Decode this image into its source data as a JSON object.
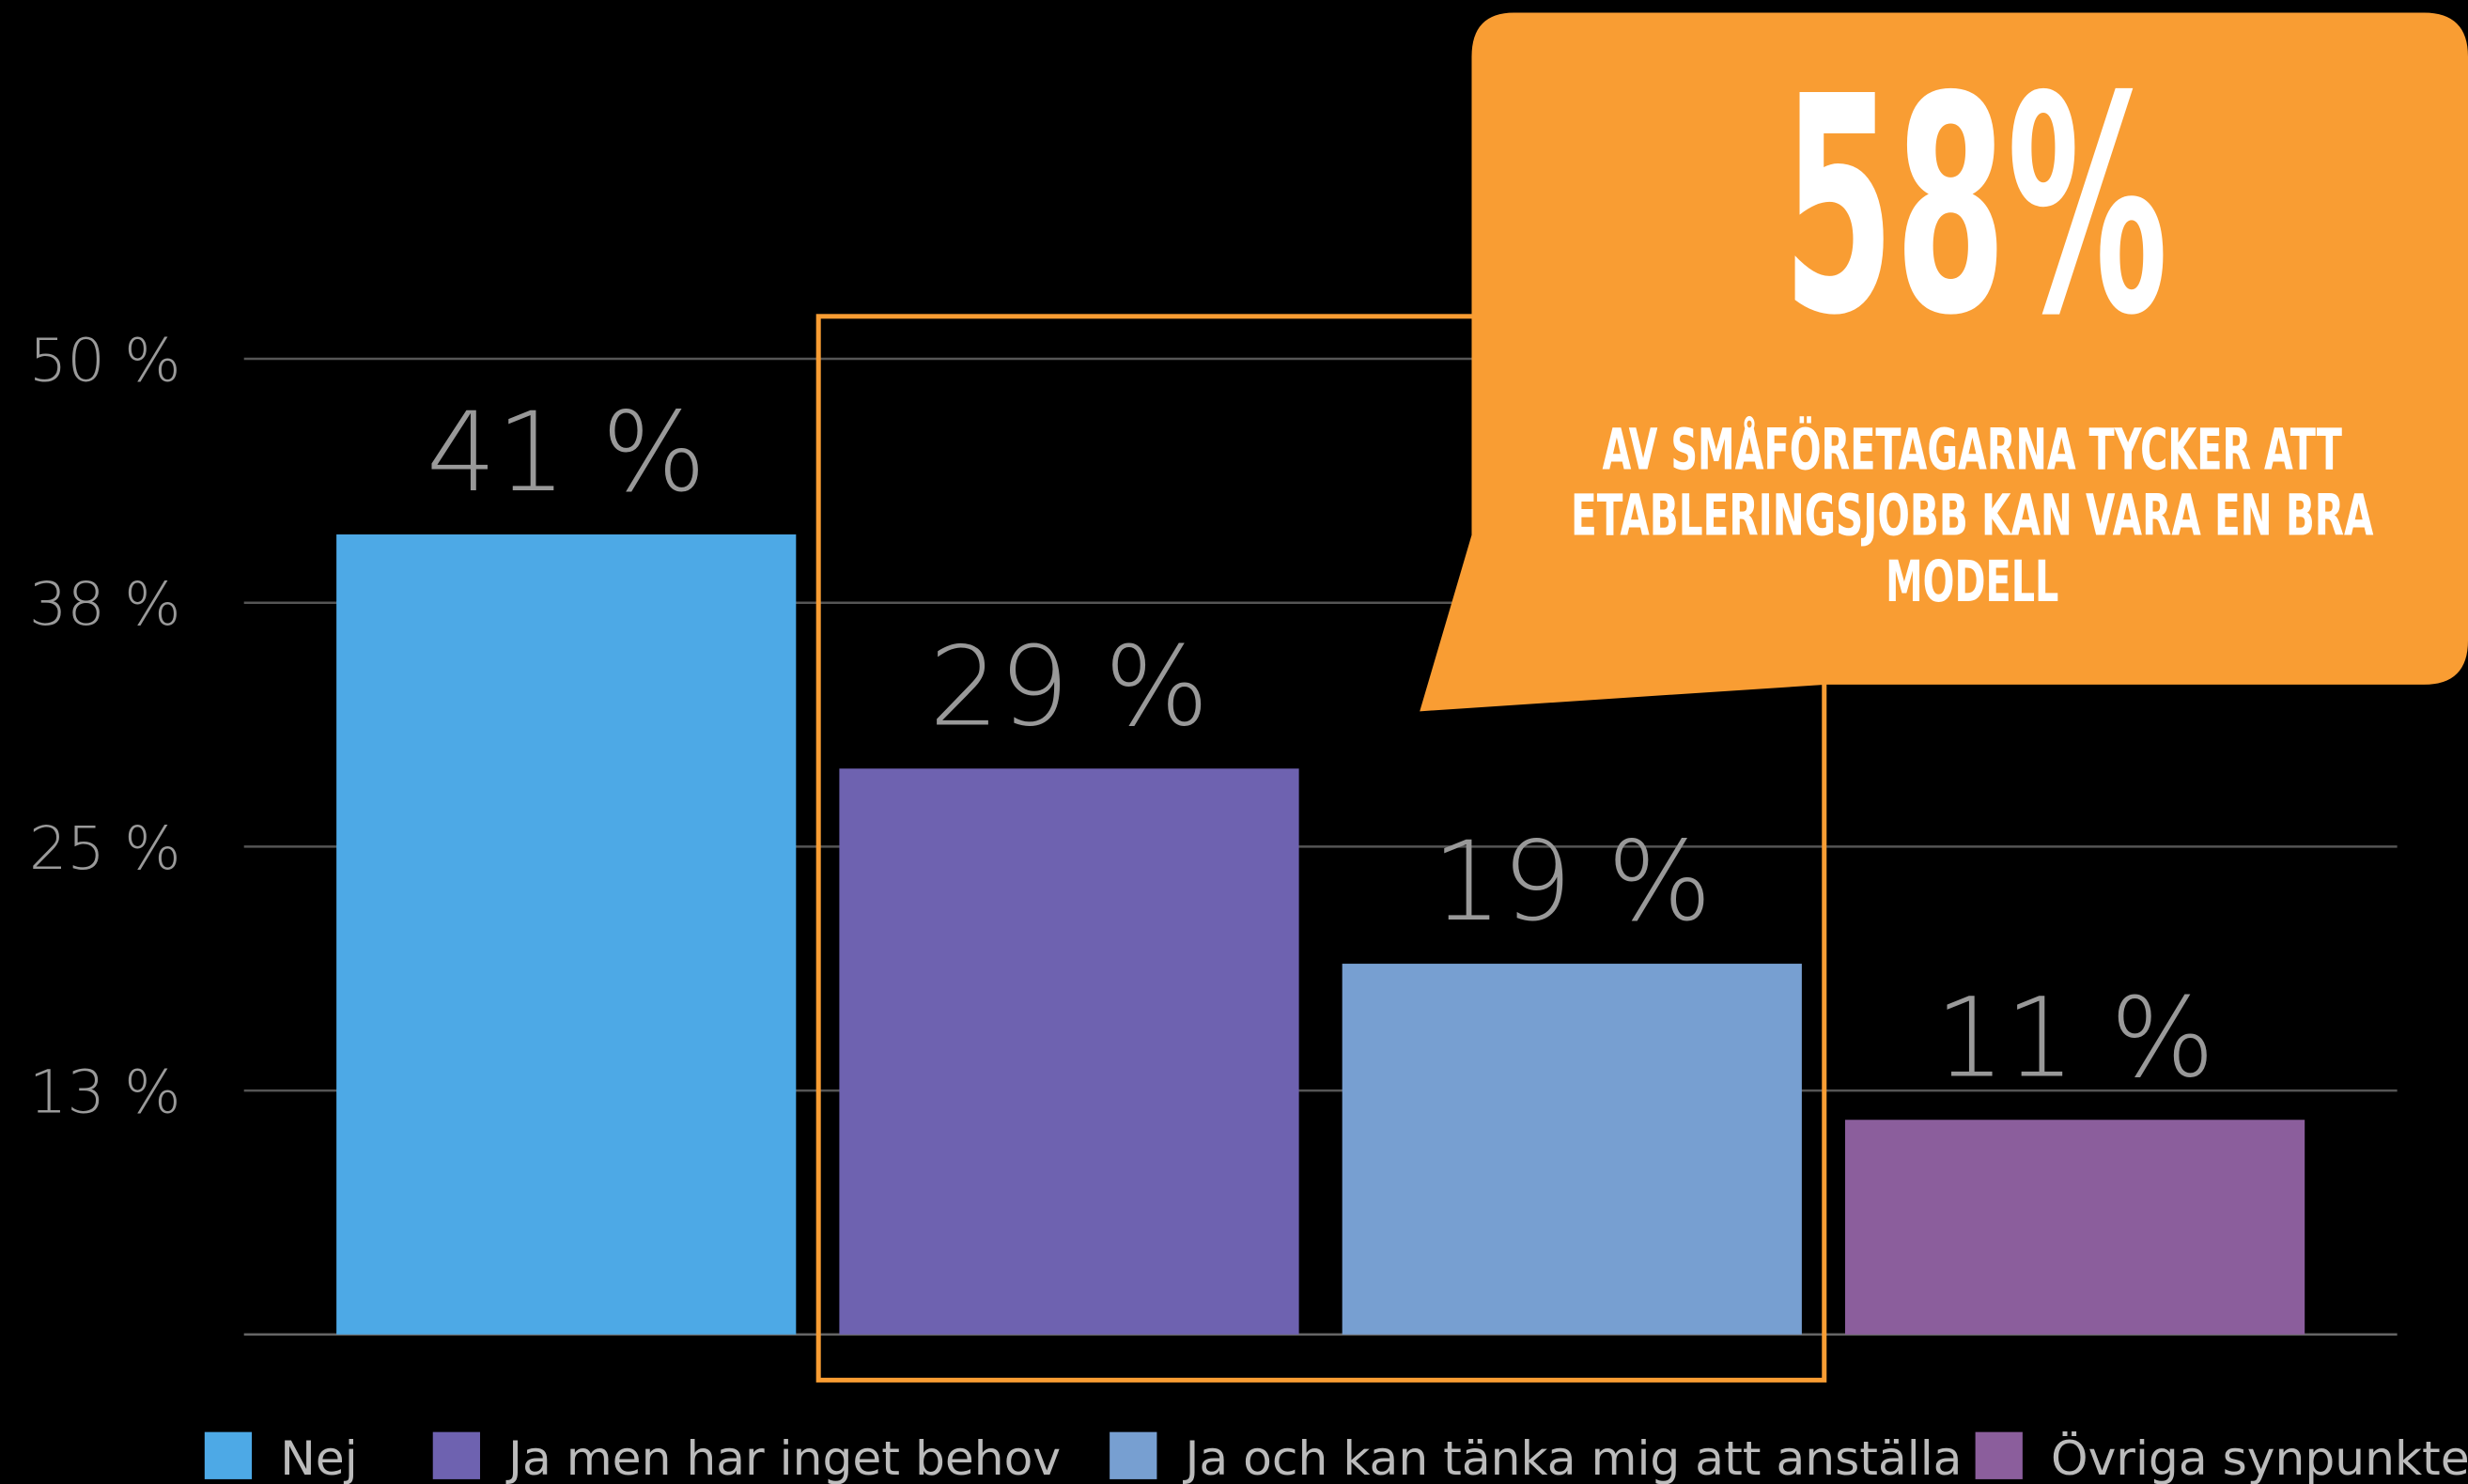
{
  "chart_data": {
    "type": "bar",
    "categories": [
      "Nej",
      "Ja men har inget behov",
      "Ja och kan tänka mig att anställa",
      "Övriga synpunkter"
    ],
    "values": [
      41,
      29,
      19,
      11
    ],
    "value_labels": [
      "41 %",
      "29 %",
      "19 %",
      "11 %"
    ],
    "colors": [
      "#4da9e6",
      "#6e62b0",
      "#779fd1",
      "#8b5e9c"
    ],
    "ylim": [
      0,
      50
    ],
    "yticks": [
      {
        "value": 12.5,
        "label": "13 %"
      },
      {
        "value": 25,
        "label": "25 %"
      },
      {
        "value": 37.5,
        "label": "38 %"
      },
      {
        "value": 50,
        "label": "50 %"
      }
    ],
    "grid": true,
    "annotation": {
      "headline": "58%",
      "lines": [
        "AV SMÅFÖRETAGARNA TYCKER ATT",
        "ETABLERINGSJOBB KAN VARA EN BRA",
        "MODELL"
      ]
    }
  }
}
